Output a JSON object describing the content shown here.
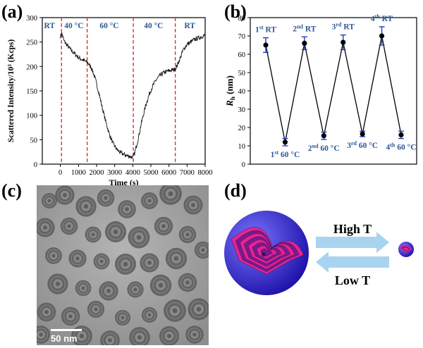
{
  "panels": {
    "a": "(a)",
    "b": "(b)",
    "c": "(c)",
    "d": "(d)"
  },
  "chart_data": [
    {
      "type": "line",
      "xlabel": "Time (s)",
      "ylabel": "Scattered Intensity/10³ (Kcps)",
      "xlim": [
        -1000,
        8000
      ],
      "ylim": [
        0,
        300
      ],
      "xticks": [
        0,
        1000,
        2000,
        3000,
        4000,
        5000,
        6000,
        7000,
        8000
      ],
      "yticks": [
        0,
        50,
        100,
        150,
        200,
        250,
        300
      ],
      "grid": false,
      "region_labels": [
        "RT",
        "40 °C",
        "60 °C",
        "40 °C",
        "RT"
      ],
      "region_boundaries": [
        60,
        1480,
        4030,
        6350
      ],
      "region_centers": [
        -600,
        750,
        2700,
        5150,
        7150
      ],
      "colors": {
        "series": "#111111",
        "dashed": "#e0332c",
        "label": "#2b5797"
      },
      "x": [
        0,
        80,
        200,
        400,
        600,
        800,
        1000,
        1200,
        1400,
        1500,
        1700,
        1900,
        2100,
        2300,
        2500,
        2700,
        2900,
        3100,
        3300,
        3500,
        3700,
        3900,
        4000,
        4100,
        4300,
        4500,
        4700,
        4900,
        5100,
        5300,
        5500,
        5700,
        5900,
        6100,
        6300,
        6400,
        6600,
        6800,
        7000,
        7200,
        7400,
        7600,
        7800,
        8000
      ],
      "y": [
        262,
        268,
        252,
        242,
        233,
        226,
        218,
        214,
        210,
        208,
        198,
        178,
        150,
        118,
        88,
        62,
        43,
        31,
        24,
        20,
        17,
        15,
        14,
        22,
        52,
        88,
        118,
        142,
        160,
        173,
        181,
        187,
        190,
        192,
        194,
        198,
        215,
        235,
        245,
        250,
        255,
        258,
        261,
        264
      ]
    },
    {
      "type": "line",
      "xlabel": "",
      "ylabel": "R_h (nm)",
      "ylabel_main": "R",
      "ylabel_sub": "h",
      "ylabel_unit": " (nm)",
      "ylim": [
        0,
        80
      ],
      "yticks": [
        0,
        10,
        20,
        30,
        40,
        50,
        60,
        70,
        80
      ],
      "grid": false,
      "colors": {
        "series": "#000000",
        "error": "#1f3fbf",
        "label": "#2b5797"
      },
      "labels": [
        {
          "pre": "1",
          "sup": "st",
          "post": " RT",
          "pos": "above"
        },
        {
          "pre": "1",
          "sup": "st",
          "post": " 60 °C",
          "pos": "below"
        },
        {
          "pre": "2",
          "sup": "nd",
          "post": " RT",
          "pos": "above"
        },
        {
          "pre": "2",
          "sup": "nd",
          "post": " 60 °C",
          "pos": "below"
        },
        {
          "pre": "3",
          "sup": "rd",
          "post": " RT",
          "pos": "above"
        },
        {
          "pre": "3",
          "sup": "rd",
          "post": " 60 °C",
          "pos": "below"
        },
        {
          "pre": "4",
          "sup": "th",
          "post": " RT",
          "pos": "above"
        },
        {
          "pre": "4",
          "sup": "th",
          "post": " 60 °C",
          "pos": "below"
        }
      ],
      "values": [
        65,
        12,
        66,
        15.5,
        66.5,
        16.5,
        70,
        16
      ],
      "errors": [
        4,
        2,
        3.5,
        2,
        4,
        1.5,
        5,
        2
      ]
    }
  ],
  "micrograph": {
    "scale_bar": "50 nm"
  },
  "schematic": {
    "high_label": "High T",
    "low_label": "Low T",
    "colors": {
      "shell": "#3a2fd8",
      "rings": "#e6238f",
      "arrow": "#a8d4f0"
    }
  }
}
